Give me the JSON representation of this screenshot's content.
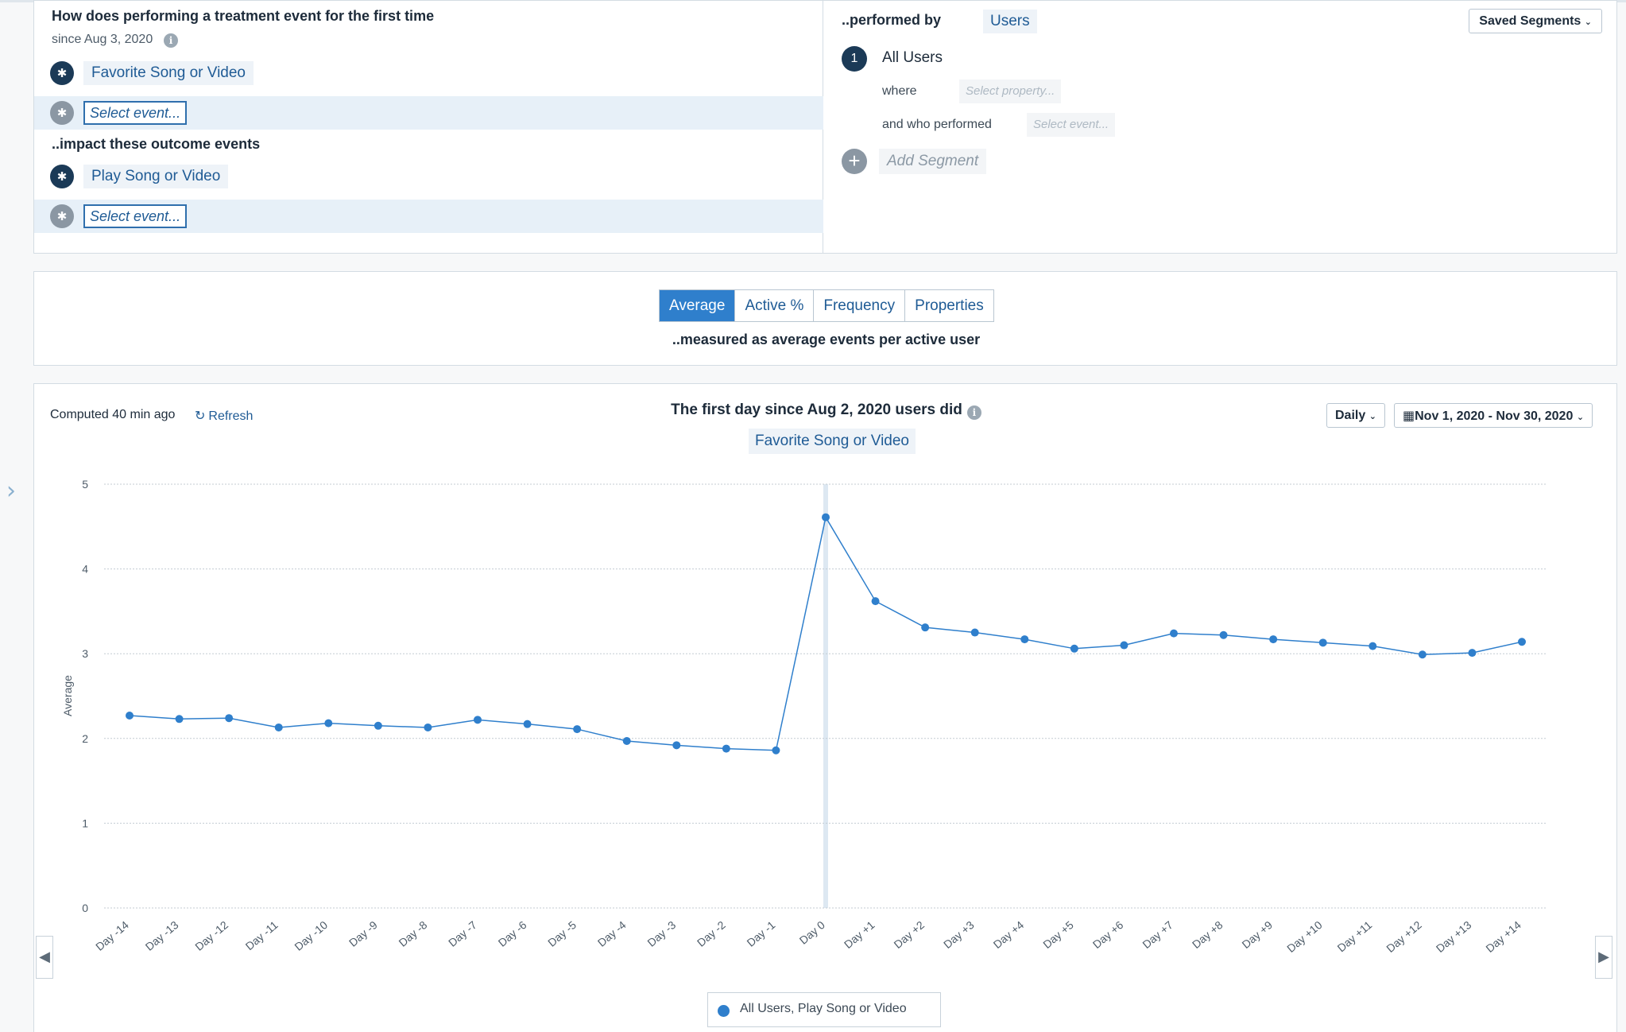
{
  "query": {
    "heading": "How does performing a treatment event for the first time",
    "since": "since Aug 3, 2020",
    "treatment_event": "Favorite Song or Video",
    "select_event_placeholder": "Select event...",
    "outcome_heading": "..impact these outcome events",
    "outcome_event": "Play Song or Video",
    "step_icon": "asterisk-icon"
  },
  "segments": {
    "performed_by_label": "..performed by",
    "users_label": "Users",
    "saved_segments_label": "Saved Segments",
    "segment_number": "1",
    "segment_name": "All Users",
    "where_label": "where",
    "select_property_placeholder": "Select property...",
    "who_performed_label": "and who performed",
    "select_event_placeholder": "Select event...",
    "add_segment_label": "Add Segment"
  },
  "metric": {
    "tabs": [
      {
        "label": "Average",
        "active": true
      },
      {
        "label": "Active %",
        "active": false
      },
      {
        "label": "Frequency",
        "active": false
      },
      {
        "label": "Properties",
        "active": false
      }
    ],
    "measured_as": "..measured as average events per active user"
  },
  "chart_panel": {
    "computed": "Computed 40 min ago",
    "refresh_label": "Refresh",
    "title": "The first day since Aug 2, 2020 users did",
    "title_event": "Favorite Song or Video",
    "interval_label": "Daily",
    "date_range_label": "Nov 1, 2020 - Nov 30, 2020",
    "legend_label": "All Users, Play Song or Video"
  },
  "colors": {
    "accent": "#2f7fcc",
    "dark_navy": "#1b3a57",
    "link": "#1f5b95"
  },
  "chart_data": {
    "type": "line",
    "ylabel": "Average",
    "xlabel": "",
    "ylim": [
      0,
      5
    ],
    "yticks": [
      0,
      1,
      2,
      3,
      4,
      5
    ],
    "grid": true,
    "highlight_category": "Day 0",
    "categories": [
      "Day -14",
      "Day -13",
      "Day -12",
      "Day -11",
      "Day -10",
      "Day -9",
      "Day -8",
      "Day -7",
      "Day -6",
      "Day -5",
      "Day -4",
      "Day -3",
      "Day -2",
      "Day -1",
      "Day 0",
      "Day +1",
      "Day +2",
      "Day +3",
      "Day +4",
      "Day +5",
      "Day +6",
      "Day +7",
      "Day +8",
      "Day +9",
      "Day +10",
      "Day +11",
      "Day +12",
      "Day +13",
      "Day +14"
    ],
    "series": [
      {
        "name": "All Users, Play Song or Video",
        "values": [
          2.27,
          2.23,
          2.24,
          2.13,
          2.18,
          2.15,
          2.13,
          2.22,
          2.17,
          2.11,
          1.97,
          1.92,
          1.88,
          1.86,
          4.61,
          3.62,
          3.31,
          3.25,
          3.17,
          3.06,
          3.1,
          3.24,
          3.22,
          3.17,
          3.13,
          3.09,
          2.99,
          3.01,
          3.14
        ]
      }
    ]
  }
}
